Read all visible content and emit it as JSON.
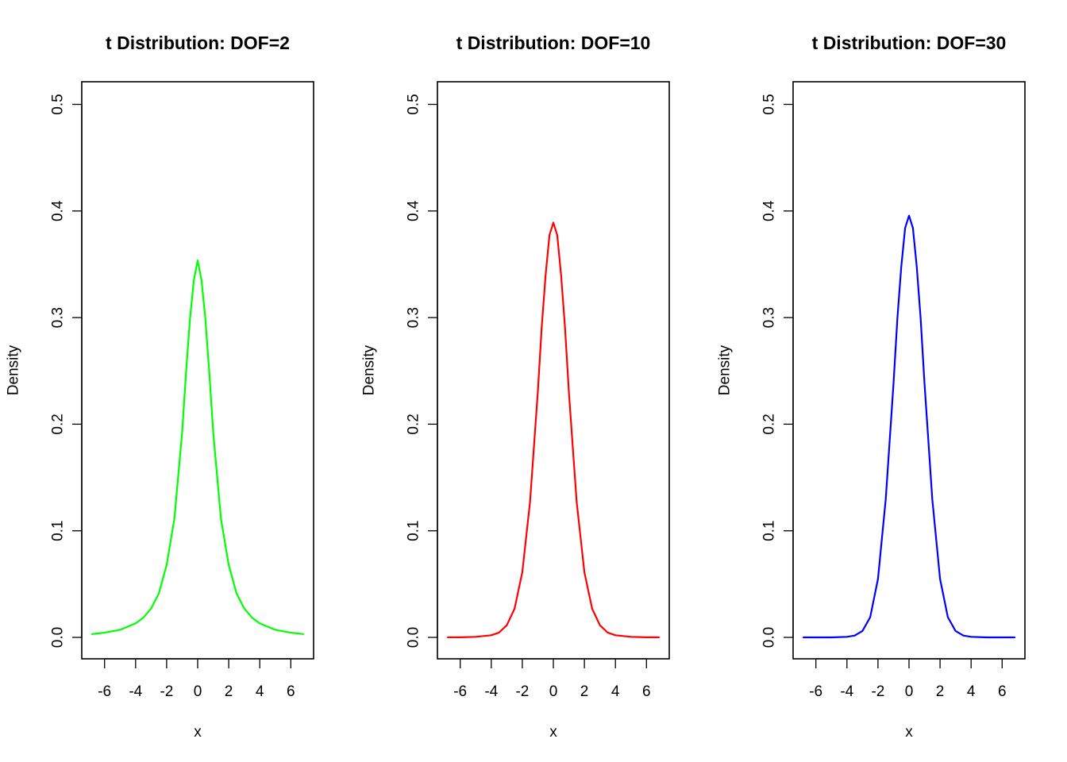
{
  "chart_data": [
    {
      "type": "line",
      "title": "t Distribution:  DOF=2",
      "xlabel": "x",
      "ylabel": "Density",
      "dof": 2,
      "xlim": [
        -7,
        7
      ],
      "ylim": [
        0,
        0.5
      ],
      "xticks": [
        -6,
        -4,
        -2,
        0,
        2,
        4,
        6
      ],
      "yticks": [
        0.0,
        0.1,
        0.2,
        0.3,
        0.4,
        0.5
      ],
      "xtick_labels": [
        "-6",
        "-4",
        "-2",
        "0",
        "2",
        "4",
        "6"
      ],
      "ytick_labels": [
        "0.0",
        "0.1",
        "0.2",
        "0.3",
        "0.4",
        "0.5"
      ],
      "line_color": "#00ff00",
      "grid": false,
      "series": [
        {
          "x": [
            -6.8,
            -6.0,
            -5.0,
            -4.0,
            -3.5,
            -3.0,
            -2.5,
            -2.0,
            -1.5,
            -1.0,
            -0.75,
            -0.5,
            -0.25,
            0.0,
            0.25,
            0.5,
            0.75,
            1.0,
            1.5,
            2.0,
            2.5,
            3.0,
            3.5,
            4.0,
            5.0,
            6.0,
            6.8
          ],
          "y": [
            0.0031,
            0.0044,
            0.0071,
            0.0131,
            0.0185,
            0.0271,
            0.0413,
            0.068,
            0.1114,
            0.1925,
            0.2482,
            0.2981,
            0.3348,
            0.3536,
            0.3348,
            0.2981,
            0.2482,
            0.1925,
            0.1114,
            0.068,
            0.0413,
            0.0271,
            0.0185,
            0.0131,
            0.0071,
            0.0044,
            0.0031
          ]
        }
      ]
    },
    {
      "type": "line",
      "title": "t Distribution:  DOF=10",
      "xlabel": "x",
      "ylabel": "Density",
      "dof": 10,
      "xlim": [
        -7,
        7
      ],
      "ylim": [
        0,
        0.5
      ],
      "xticks": [
        -6,
        -4,
        -2,
        0,
        2,
        4,
        6
      ],
      "yticks": [
        0.0,
        0.1,
        0.2,
        0.3,
        0.4,
        0.5
      ],
      "xtick_labels": [
        "-6",
        "-4",
        "-2",
        "0",
        "2",
        "4",
        "6"
      ],
      "ytick_labels": [
        "0.0",
        "0.1",
        "0.2",
        "0.3",
        "0.4",
        "0.5"
      ],
      "line_color": "#ff0000",
      "grid": false,
      "series": [
        {
          "x": [
            -6.8,
            -6.0,
            -5.0,
            -4.0,
            -3.5,
            -3.0,
            -2.5,
            -2.0,
            -1.5,
            -1.0,
            -0.75,
            -0.5,
            -0.25,
            0.0,
            0.25,
            0.5,
            0.75,
            1.0,
            1.5,
            2.0,
            2.5,
            3.0,
            3.5,
            4.0,
            5.0,
            6.0,
            6.8
          ],
          "y": [
            0.0001,
            0.0001,
            0.0005,
            0.002,
            0.0045,
            0.0114,
            0.0269,
            0.0611,
            0.1274,
            0.2304,
            0.2909,
            0.3397,
            0.3773,
            0.3891,
            0.3773,
            0.3397,
            0.2909,
            0.2304,
            0.1274,
            0.0611,
            0.0269,
            0.0114,
            0.0045,
            0.002,
            0.0005,
            0.0001,
            0.0001
          ]
        }
      ]
    },
    {
      "type": "line",
      "title": "t Distribution:  DOF=30",
      "xlabel": "x",
      "ylabel": "Density",
      "dof": 30,
      "xlim": [
        -7,
        7
      ],
      "ylim": [
        0,
        0.5
      ],
      "xticks": [
        -6,
        -4,
        -2,
        0,
        2,
        4,
        6
      ],
      "yticks": [
        0.0,
        0.1,
        0.2,
        0.3,
        0.4,
        0.5
      ],
      "xtick_labels": [
        "-6",
        "-4",
        "-2",
        "0",
        "2",
        "4",
        "6"
      ],
      "ytick_labels": [
        "0.0",
        "0.1",
        "0.2",
        "0.3",
        "0.4",
        "0.5"
      ],
      "line_color": "#0000ff",
      "grid": false,
      "series": [
        {
          "x": [
            -6.8,
            -6.0,
            -5.0,
            -4.0,
            -3.5,
            -3.0,
            -2.5,
            -2.0,
            -1.5,
            -1.0,
            -0.75,
            -0.5,
            -0.25,
            0.0,
            0.25,
            0.5,
            0.75,
            1.0,
            1.5,
            2.0,
            2.5,
            3.0,
            3.5,
            4.0,
            5.0,
            6.0,
            6.8
          ],
          "y": [
            0.0,
            0.0,
            0.0,
            0.0005,
            0.0017,
            0.006,
            0.019,
            0.0548,
            0.1295,
            0.2378,
            0.299,
            0.3475,
            0.3841,
            0.3956,
            0.3841,
            0.3475,
            0.299,
            0.2378,
            0.1295,
            0.0548,
            0.019,
            0.006,
            0.0017,
            0.0005,
            0.0,
            0.0,
            0.0
          ]
        }
      ]
    }
  ]
}
